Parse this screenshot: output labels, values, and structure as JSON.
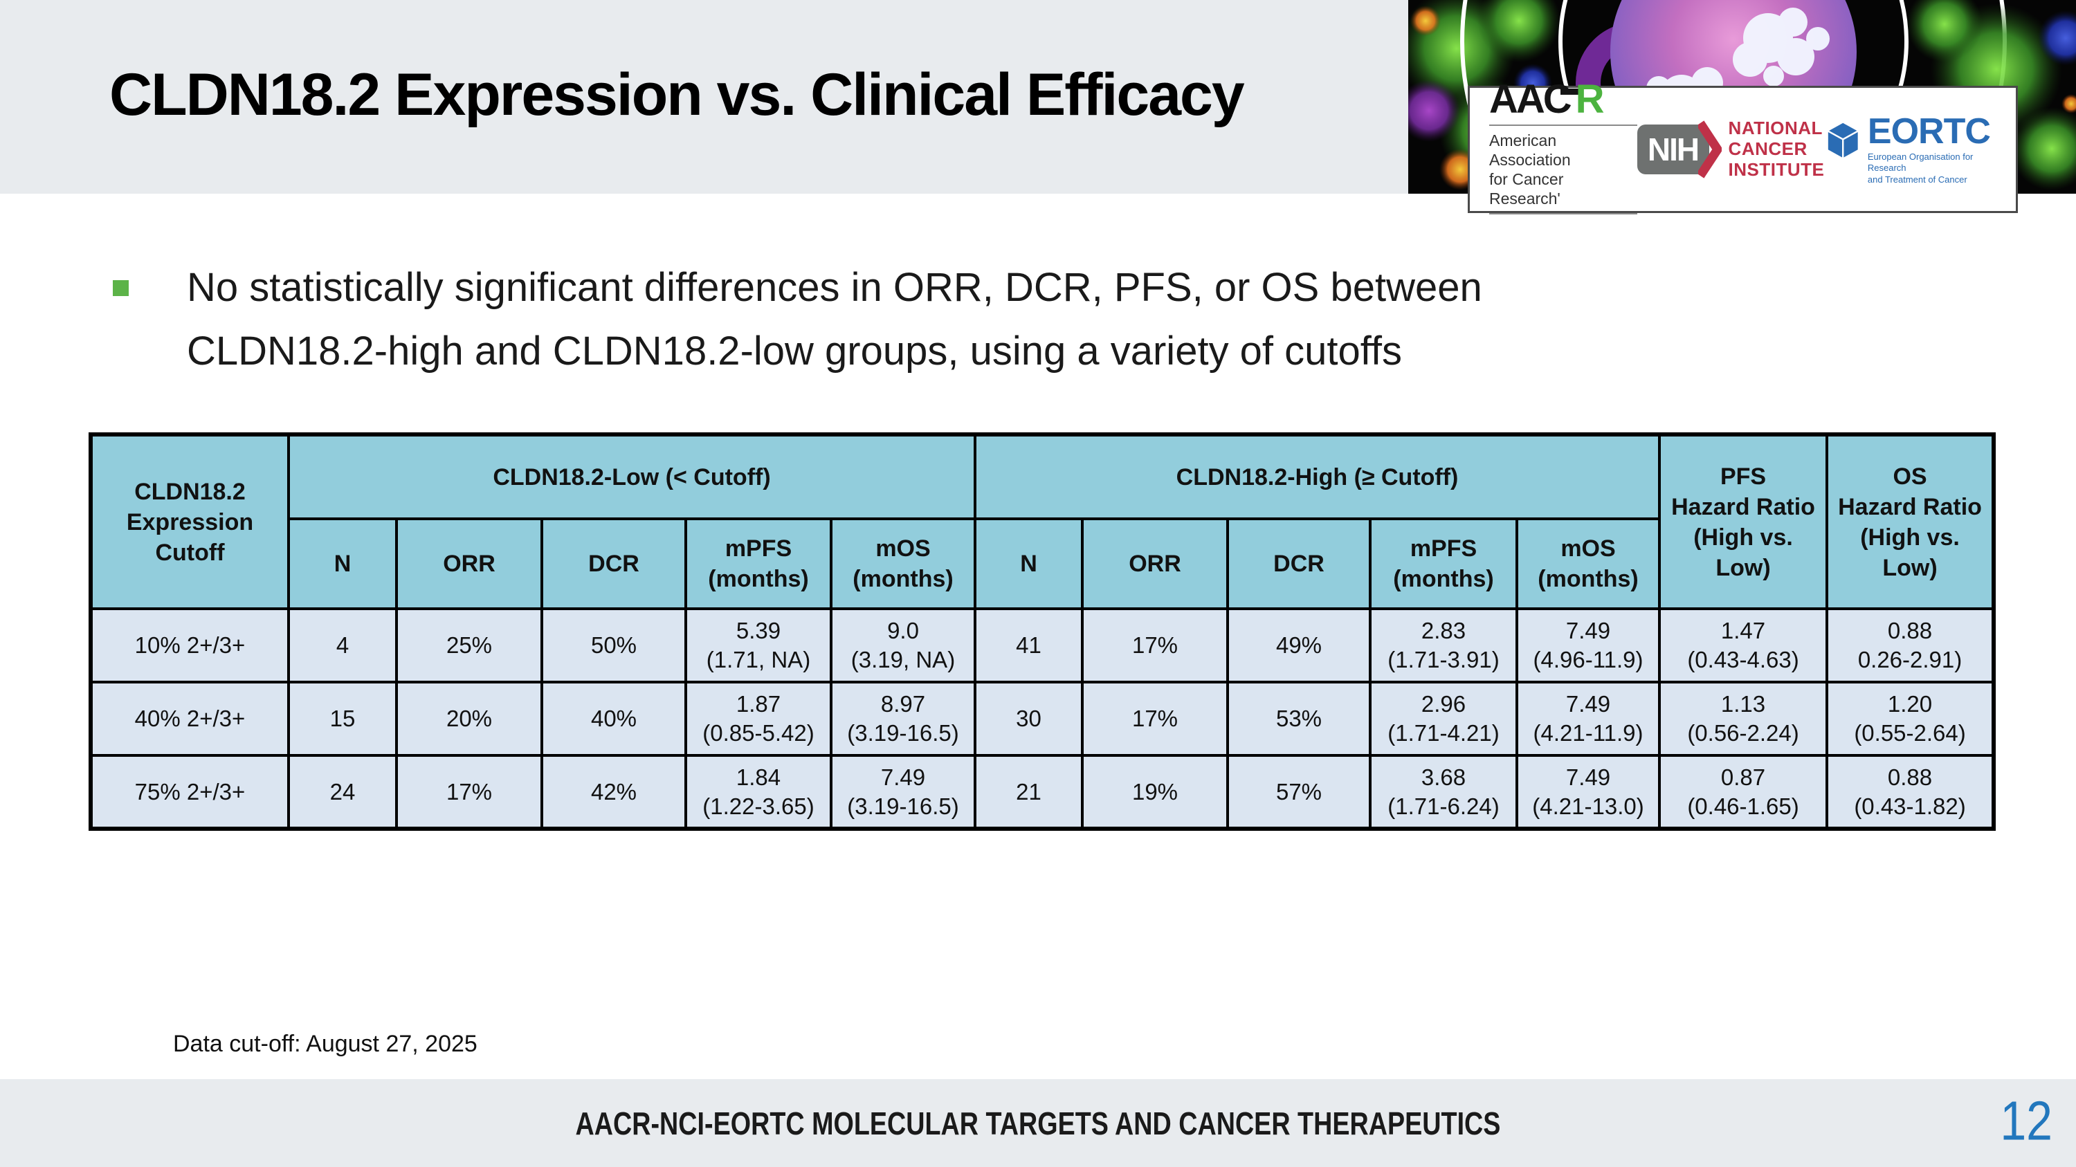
{
  "slide": {
    "title": "CLDN18.2 Expression vs. Clinical Efficacy",
    "bullet": {
      "line1": "No statistically significant differences in ORR, DCR, PFS, or OS between",
      "line2": "CLDN18.2-high and CLDN18.2-low groups, using a variety of cutoffs"
    },
    "data_cutoff_note": "Data cut-off: August 27, 2025",
    "footer_title": "AACR-NCI-EORTC MOLECULAR TARGETS AND CANCER THERAPEUTICS",
    "page_number": "12"
  },
  "logos": {
    "aacr": {
      "word_black": "AAC",
      "word_green": "R",
      "sub_line1": "American Association",
      "sub_line2": "for Cancer Research'"
    },
    "nih": {
      "acronym": "NIH",
      "org_line1": "NATIONAL",
      "org_line2": "CANCER",
      "org_line3": "INSTITUTE"
    },
    "eortc": {
      "acronym": "EORTC",
      "sub_line1": "European Organisation for Research",
      "sub_line2": "and Treatment of Cancer"
    }
  },
  "table": {
    "corner_header": "CLDN18.2\nExpression\nCutoff",
    "group_low": "CLDN18.2-Low (< Cutoff)",
    "group_high": "CLDN18.2-High (≥ Cutoff)",
    "pfs_hr_header": "PFS\nHazard Ratio\n(High vs. Low)",
    "os_hr_header": "OS\nHazard Ratio\n(High vs. Low)",
    "sub_headers": [
      "N",
      "ORR",
      "DCR",
      "mPFS\n(months)",
      "mOS\n(months)",
      "N",
      "ORR",
      "DCR",
      "mPFS\n(months)",
      "mOS\n(months)"
    ],
    "rows": [
      [
        "10% 2+/3+",
        "4",
        "25%",
        "50%",
        "5.39\n(1.71, NA)",
        "9.0\n(3.19, NA)",
        "41",
        "17%",
        "49%",
        "2.83\n(1.71-3.91)",
        "7.49\n(4.96-11.9)",
        "1.47\n(0.43-4.63)",
        "0.88\n0.26-2.91)"
      ],
      [
        "40% 2+/3+",
        "15",
        "20%",
        "40%",
        "1.87\n(0.85-5.42)",
        "8.97\n(3.19-16.5)",
        "30",
        "17%",
        "53%",
        "2.96\n(1.71-4.21)",
        "7.49\n(4.21-11.9)",
        "1.13\n(0.56-2.24)",
        "1.20\n(0.55-2.64)"
      ],
      [
        "75% 2+/3+",
        "24",
        "17%",
        "42%",
        "1.84\n(1.22-3.65)",
        "7.49\n(3.19-16.5)",
        "21",
        "19%",
        "57%",
        "3.68\n(1.71-6.24)",
        "7.49\n(4.21-13.0)",
        "0.87\n(0.46-1.65)",
        "0.88\n(0.43-1.82)"
      ]
    ]
  },
  "colors": {
    "band_gray": "#e8ebee",
    "table_header_fill": "#92cddc",
    "table_row_fill": "#dbe5f1",
    "bullet_green": "#5cb348",
    "page_number_blue": "#2277bd",
    "aacr_green": "#4cb33f",
    "nih_gray": "#6e7170",
    "nci_red": "#bf3148",
    "eortc_blue": "#2a6cb4"
  }
}
